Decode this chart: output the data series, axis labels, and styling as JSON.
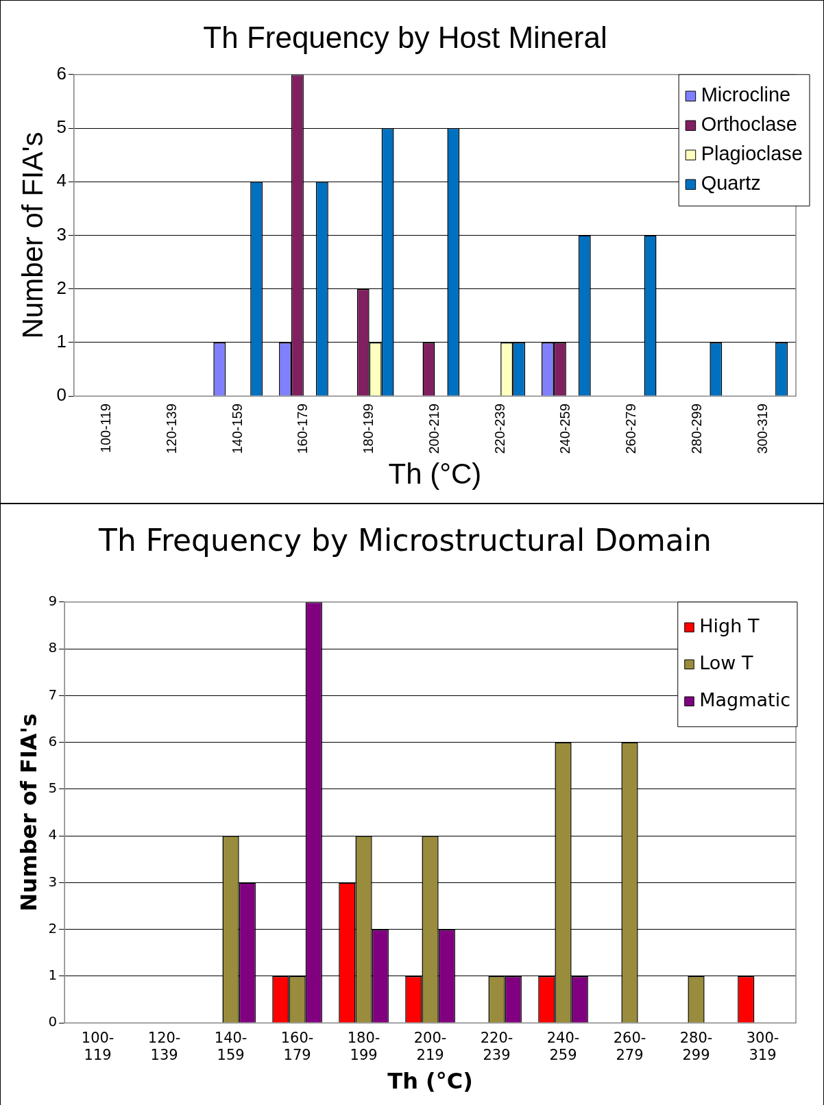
{
  "chart_data": [
    {
      "type": "bar",
      "title": "Th Frequency by Host Mineral",
      "xlabel": "Th (°C)",
      "ylabel": "Number of FIA's",
      "categories": [
        "100-119",
        "120-139",
        "140-159",
        "160-179",
        "180-199",
        "200-219",
        "220-239",
        "240-259",
        "260-279",
        "280-299",
        "300-319"
      ],
      "series": [
        {
          "name": "Microcline",
          "color": "#8080ff",
          "values": [
            0,
            0,
            1,
            1,
            0,
            0,
            0,
            1,
            0,
            0,
            0
          ]
        },
        {
          "name": "Orthoclase",
          "color": "#802060",
          "values": [
            0,
            0,
            0,
            6,
            2,
            1,
            0,
            1,
            0,
            0,
            0
          ]
        },
        {
          "name": "Plagioclase",
          "color": "#ffffc0",
          "values": [
            0,
            0,
            0,
            0,
            1,
            0,
            1,
            0,
            0,
            0,
            0
          ]
        },
        {
          "name": "Quartz",
          "color": "#0070c0",
          "values": [
            0,
            0,
            4,
            4,
            5,
            5,
            1,
            3,
            3,
            1,
            1
          ]
        }
      ],
      "ylim": [
        0,
        6
      ],
      "yticks": [
        0,
        1,
        2,
        3,
        4,
        5,
        6
      ],
      "grid": "y",
      "legend": "top right"
    },
    {
      "type": "bar",
      "title": "Th Frequency by Microstructural Domain",
      "xlabel": "Th (°C)",
      "ylabel": "Number of FIA's",
      "categories": [
        "100-119",
        "120-139",
        "140-159",
        "160-179",
        "180-199",
        "200-219",
        "220-239",
        "240-259",
        "260-279",
        "280-299",
        "300-319"
      ],
      "series": [
        {
          "name": "High T",
          "color": "#ff0000",
          "values": [
            0,
            0,
            0,
            1,
            3,
            1,
            0,
            1,
            0,
            0,
            1
          ]
        },
        {
          "name": "Low T",
          "color": "#998c3c",
          "values": [
            0,
            0,
            4,
            1,
            4,
            4,
            1,
            6,
            6,
            1,
            0
          ]
        },
        {
          "name": "Magmatic",
          "color": "#800080",
          "values": [
            0,
            0,
            3,
            9,
            2,
            2,
            1,
            1,
            0,
            0,
            0
          ]
        }
      ],
      "ylim": [
        0,
        9
      ],
      "yticks": [
        0,
        1,
        2,
        3,
        4,
        5,
        6,
        7,
        8,
        9
      ],
      "grid": "y",
      "legend": "top right"
    }
  ]
}
